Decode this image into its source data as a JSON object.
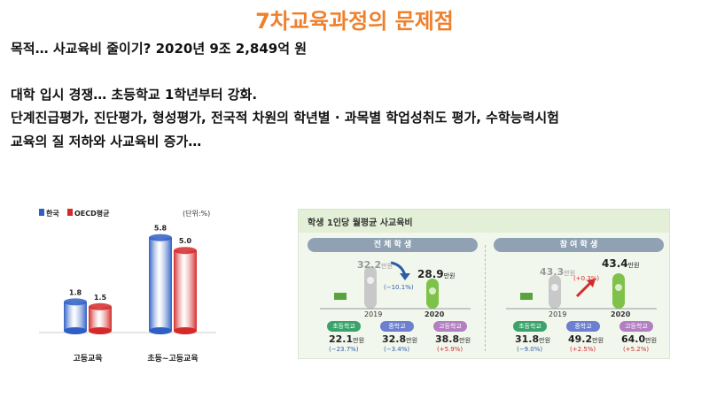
{
  "title": "7차교육과정의 문제점",
  "purpose_line": "목적… 사교육비 줄이기? 2020년 9조 2,849억 원",
  "lines": [
    "대학 입시 경쟁… 초등학교 1학년부터 강화.",
    "단계진급평가, 진단평가, 형성평가, 전국적 차원의 학년별 · 과목별 학업성취도 평가, 수학능력시험",
    "교육의 질 저하와 사교육비 증가…"
  ],
  "chart_data": [
    {
      "type": "bar",
      "unit_label": "(단위:%)",
      "categories": [
        "고등교육",
        "초등~고등교육"
      ],
      "series": [
        {
          "name": "한국",
          "values": [
            1.8,
            5.8
          ],
          "color": "#2f5fc4"
        },
        {
          "name": "OECD평균",
          "values": [
            1.5,
            5.0
          ],
          "color": "#d42a2a"
        }
      ],
      "ylim": [
        0,
        6.5
      ]
    }
  ],
  "infographic": {
    "header": "학생 1인당 월평균 사교육비",
    "panels": [
      {
        "label": "전 체 학 생",
        "color": "#8fa1b3",
        "year_prev": "2019",
        "year_cur": "2020",
        "value_prev": "32.2",
        "value_cur": "28.9",
        "unit": "만원",
        "change": "(−10.1%)",
        "change_color": "#2a5caa",
        "categories": [
          {
            "name": "초등학교",
            "value": "22.1",
            "unit": "만원",
            "change": "(−23.7%)",
            "color": "#3aa36b",
            "change_color": "#2a5caa"
          },
          {
            "name": "중학교",
            "value": "32.8",
            "unit": "만원",
            "change": "(−3.4%)",
            "color": "#6c7fd0",
            "change_color": "#2a5caa"
          },
          {
            "name": "고등학교",
            "value": "38.8",
            "unit": "만원",
            "change": "(+5.9%)",
            "color": "#b27fc2",
            "change_color": "#d42a2a"
          }
        ]
      },
      {
        "label": "참 여 학 생",
        "color": "#8fa1b3",
        "year_prev": "2019",
        "year_cur": "2020",
        "value_prev": "43.3",
        "value_cur": "43.4",
        "unit": "만원",
        "change": "(+0.3%)",
        "change_color": "#d42a2a",
        "categories": [
          {
            "name": "초등학교",
            "value": "31.8",
            "unit": "만원",
            "change": "(−9.0%)",
            "color": "#3aa36b",
            "change_color": "#2a5caa"
          },
          {
            "name": "중학교",
            "value": "49.2",
            "unit": "만원",
            "change": "(+2.5%)",
            "color": "#6c7fd0",
            "change_color": "#d42a2a"
          },
          {
            "name": "고등학교",
            "value": "64.0",
            "unit": "만원",
            "change": "(+5.2%)",
            "color": "#b27fc2",
            "change_color": "#d42a2a"
          }
        ]
      }
    ]
  }
}
